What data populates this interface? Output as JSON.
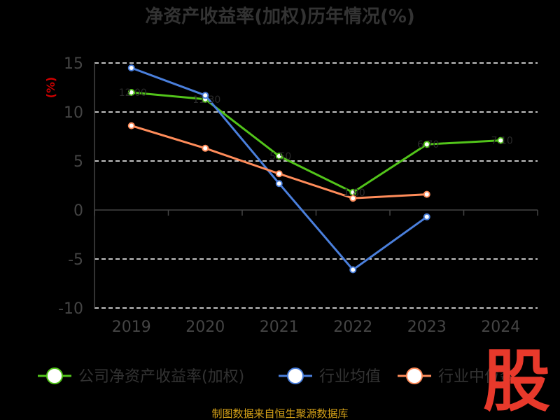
{
  "chart_data": {
    "type": "line",
    "title": "净资产收益率(加权)历年情况(%)",
    "ylabel": "(%)",
    "categories": [
      "2019",
      "2020",
      "2021",
      "2022",
      "2023",
      "2024"
    ],
    "y_ticks": [
      "15",
      "10",
      "5",
      "0",
      "-5",
      "-10"
    ],
    "ylim": [
      -10,
      15
    ],
    "grid": true,
    "legend_position": "bottom",
    "series": [
      {
        "name": "公司净资产收益率(加权)",
        "color": "#52c41a",
        "values": [
          12.0,
          11.3,
          5.5,
          1.8,
          6.7,
          7.1
        ]
      },
      {
        "name": "行业均值",
        "color": "#4a7fdc",
        "values": [
          14.5,
          11.7,
          2.7,
          -6.1,
          -0.7,
          null
        ]
      },
      {
        "name": "行业中位数",
        "color": "#ff8c5a",
        "values": [
          8.6,
          6.3,
          3.7,
          1.2,
          1.6,
          null
        ]
      }
    ],
    "data_labels": [
      "12.00",
      "11.30",
      "5.50",
      "1.80",
      "6.70",
      "7.10"
    ]
  },
  "source": "制图数据来自恒生聚源数据库",
  "logo_text": "股"
}
